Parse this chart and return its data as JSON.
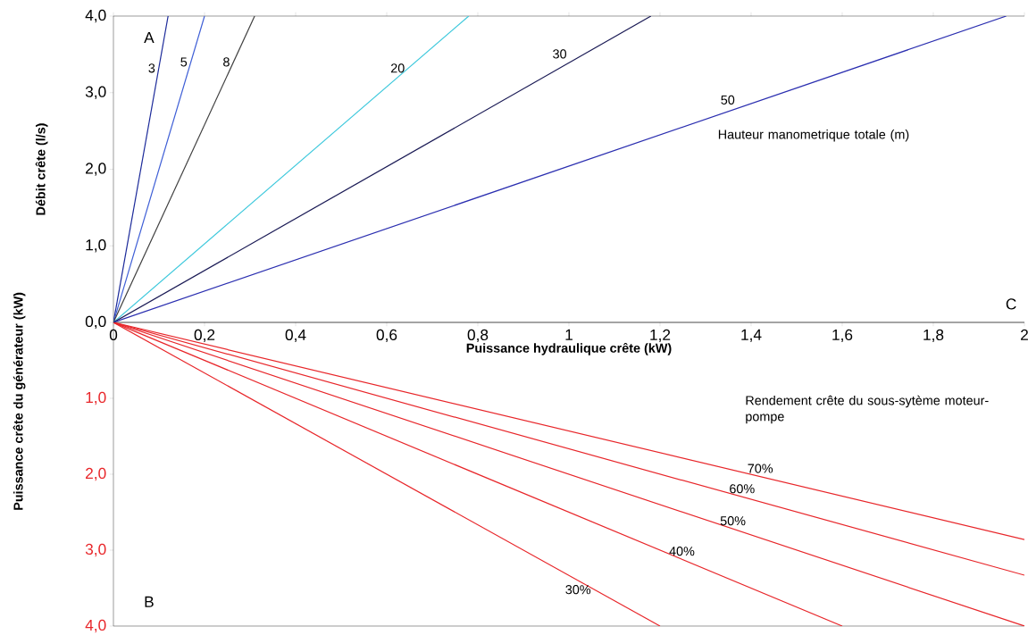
{
  "chart_data": [
    {
      "type": "line",
      "ylabel": "Débit crête (l/s)",
      "xlabel": "Puissance hydraulique crête (kW)",
      "xlim": [
        0,
        2
      ],
      "ylim": [
        0,
        4
      ],
      "xticks": [
        {
          "value": 0,
          "label": "0"
        },
        {
          "value": 0.2,
          "label": "0,2"
        },
        {
          "value": 0.4,
          "label": "0,4"
        },
        {
          "value": 0.6,
          "label": "0,6"
        },
        {
          "value": 0.8,
          "label": "0,8"
        },
        {
          "value": 1,
          "label": "1"
        },
        {
          "value": 1.2,
          "label": "1,2"
        },
        {
          "value": 1.4,
          "label": "1,4"
        },
        {
          "value": 1.6,
          "label": "1,6"
        },
        {
          "value": 1.8,
          "label": "1,8"
        },
        {
          "value": 2,
          "label": "2"
        }
      ],
      "yticks": [
        {
          "value": 0,
          "label": "0,0"
        },
        {
          "value": 1,
          "label": "1,0"
        },
        {
          "value": 2,
          "label": "2,0"
        },
        {
          "value": 3,
          "label": "3,0"
        },
        {
          "value": 4,
          "label": "4,0"
        }
      ],
      "annotations": [
        "A",
        "C",
        "Hauteur manometrique totale (m)"
      ],
      "series": [
        {
          "name": "3",
          "color": "#1c2a9a",
          "x": [
            0,
            0.12
          ],
          "values": [
            0,
            4
          ]
        },
        {
          "name": "5",
          "color": "#3f5fd6",
          "x": [
            0,
            0.2
          ],
          "values": [
            0,
            4
          ]
        },
        {
          "name": "8",
          "color": "#404040",
          "x": [
            0,
            0.31
          ],
          "values": [
            0,
            4
          ]
        },
        {
          "name": "20",
          "color": "#3cc8dc",
          "x": [
            0,
            0.78
          ],
          "values": [
            0,
            4
          ]
        },
        {
          "name": "30",
          "color": "#1a1a55",
          "x": [
            0,
            1.18
          ],
          "values": [
            0,
            4
          ]
        },
        {
          "name": "50",
          "color": "#2b2fb0",
          "x": [
            0,
            1.96
          ],
          "values": [
            0,
            4
          ]
        }
      ]
    },
    {
      "type": "line",
      "ylabel": "Puissance crête du générateur (kW)",
      "xlim": [
        0,
        2
      ],
      "ylim": [
        4,
        0
      ],
      "tick_labels": "y",
      "yticks": [
        {
          "value": 1,
          "label": "1,0"
        },
        {
          "value": 2,
          "label": "2,0"
        },
        {
          "value": 3,
          "label": "3,0"
        },
        {
          "value": 4,
          "label": "4,0"
        }
      ],
      "annotations": [
        "B",
        "Rendement crête du sous-sytème moteur-pompe"
      ],
      "series": [
        {
          "name": "30%",
          "color": "#e8262a",
          "x": [
            0,
            1.2
          ],
          "values": [
            0,
            4
          ]
        },
        {
          "name": "40%",
          "color": "#e8262a",
          "x": [
            0,
            1.6
          ],
          "values": [
            0,
            4
          ]
        },
        {
          "name": "50%",
          "color": "#e8262a",
          "x": [
            0,
            2
          ],
          "values": [
            0,
            4
          ]
        },
        {
          "name": "60%",
          "color": "#e8262a",
          "x": [
            0,
            2
          ],
          "values": [
            0,
            3.33
          ]
        },
        {
          "name": "70%",
          "color": "#e8262a",
          "x": [
            0,
            2
          ],
          "values": [
            0,
            2.86
          ]
        }
      ]
    }
  ]
}
